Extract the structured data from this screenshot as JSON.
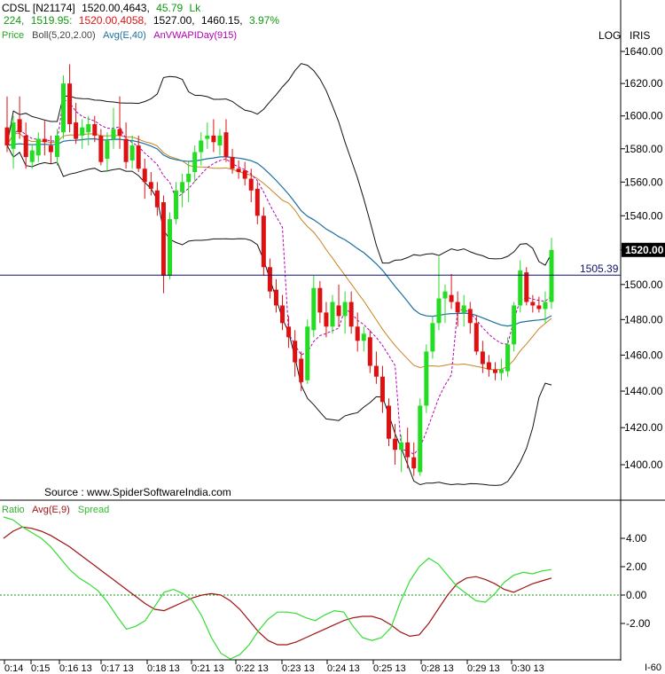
{
  "header": {
    "line1_symbol": "CDSL [N21174]",
    "line1_quote": "1520.00,4643,",
    "line1_change": "45.79",
    "line1_unit": "Lk",
    "line2_a": "224,",
    "line2_b": "1519.95:",
    "line2_c": "1520.00,4058,",
    "line2_d": "1527.00,",
    "line2_e": "1460.15,",
    "line2_f": "3.97%"
  },
  "legend": {
    "price": "Price",
    "boll": "Boll(5,20,2.00)",
    "avg": "Avg(E,40)",
    "vwap": "AnVWAPIDay(915)"
  },
  "top_right": {
    "log": "LOG",
    "iris": "IRIS"
  },
  "source": "Source : www.SpiderSoftwareIndia.com",
  "hline_label": "1505.39",
  "price_badge": "1520.00",
  "lower_legend": {
    "ratio": "Ratio",
    "avg": "Avg(E,9)",
    "spread": "Spread"
  },
  "corner_label": "I-60",
  "colors": {
    "up": "#22dd22",
    "down": "#dd1111",
    "boll": "#111111",
    "ema": "#1a6fa0",
    "vwap": "#b400b4",
    "mid": "#c8821e",
    "ratio": "#a01414",
    "spread": "#33dd33",
    "hline": "#101070",
    "zero": "#119911"
  },
  "chart_data": [
    {
      "type": "candlestick",
      "title": "CDSL [N21174]",
      "yscale": "log",
      "ylim": [
        1380,
        1650
      ],
      "y_ticks": [
        1400,
        1420,
        1440,
        1460,
        1480,
        1500,
        1520,
        1540,
        1560,
        1580,
        1600,
        1620,
        1640
      ],
      "x_ticks": [
        "0:14",
        "0:15",
        "0:16 13",
        "0:17 13",
        "0:18 13",
        "0:21 13",
        "0:22 13",
        "0:23 13",
        "0:24 13",
        "0:25 13",
        "0:28 13",
        "0:29 13",
        "0:30 13"
      ],
      "horizontal_line": 1505.39,
      "candles": [
        [
          1593,
          1612,
          1578,
          1582
        ],
        [
          1580,
          1600,
          1568,
          1596
        ],
        [
          1598,
          1612,
          1586,
          1590
        ],
        [
          1588,
          1596,
          1568,
          1575
        ],
        [
          1572,
          1583,
          1568,
          1579
        ],
        [
          1576,
          1590,
          1572,
          1586
        ],
        [
          1586,
          1597,
          1576,
          1584
        ],
        [
          1582,
          1588,
          1571,
          1578
        ],
        [
          1575,
          1592,
          1570,
          1588
        ],
        [
          1590,
          1625,
          1586,
          1620
        ],
        [
          1620,
          1632,
          1590,
          1595
        ],
        [
          1596,
          1608,
          1583,
          1586
        ],
        [
          1588,
          1598,
          1580,
          1593
        ],
        [
          1590,
          1600,
          1582,
          1595
        ],
        [
          1595,
          1600,
          1584,
          1588
        ],
        [
          1588,
          1592,
          1570,
          1572
        ],
        [
          1574,
          1590,
          1566,
          1585
        ],
        [
          1586,
          1605,
          1580,
          1592
        ],
        [
          1592,
          1612,
          1580,
          1588
        ],
        [
          1586,
          1596,
          1568,
          1572
        ],
        [
          1573,
          1588,
          1568,
          1582
        ],
        [
          1582,
          1588,
          1566,
          1568
        ],
        [
          1568,
          1574,
          1550,
          1560
        ],
        [
          1560,
          1566,
          1552,
          1556
        ],
        [
          1555,
          1560,
          1540,
          1545
        ],
        [
          1548,
          1552,
          1495,
          1505
        ],
        [
          1505,
          1542,
          1503,
          1538
        ],
        [
          1538,
          1560,
          1535,
          1555
        ],
        [
          1554,
          1565,
          1545,
          1560
        ],
        [
          1560,
          1572,
          1548,
          1565
        ],
        [
          1566,
          1582,
          1560,
          1578
        ],
        [
          1578,
          1590,
          1570,
          1585
        ],
        [
          1586,
          1596,
          1580,
          1588
        ],
        [
          1588,
          1598,
          1578,
          1584
        ],
        [
          1582,
          1592,
          1576,
          1588
        ],
        [
          1590,
          1598,
          1572,
          1575
        ],
        [
          1575,
          1580,
          1565,
          1568
        ],
        [
          1568,
          1573,
          1562,
          1566
        ],
        [
          1567,
          1572,
          1558,
          1562
        ],
        [
          1562,
          1568,
          1548,
          1555
        ],
        [
          1556,
          1560,
          1535,
          1540
        ],
        [
          1540,
          1545,
          1505,
          1510
        ],
        [
          1510,
          1515,
          1492,
          1496
        ],
        [
          1497,
          1503,
          1484,
          1488
        ],
        [
          1488,
          1494,
          1474,
          1478
        ],
        [
          1476,
          1482,
          1464,
          1470
        ],
        [
          1468,
          1474,
          1448,
          1456
        ],
        [
          1458,
          1462,
          1440,
          1445
        ],
        [
          1446,
          1480,
          1444,
          1476
        ],
        [
          1474,
          1505,
          1470,
          1498
        ],
        [
          1498,
          1502,
          1478,
          1484
        ],
        [
          1484,
          1490,
          1470,
          1476
        ],
        [
          1476,
          1494,
          1472,
          1490
        ],
        [
          1488,
          1500,
          1476,
          1482
        ],
        [
          1482,
          1496,
          1472,
          1490
        ],
        [
          1490,
          1496,
          1472,
          1476
        ],
        [
          1476,
          1484,
          1462,
          1468
        ],
        [
          1468,
          1476,
          1462,
          1472
        ],
        [
          1470,
          1474,
          1450,
          1454
        ],
        [
          1454,
          1462,
          1444,
          1448
        ],
        [
          1448,
          1454,
          1428,
          1434
        ],
        [
          1432,
          1436,
          1410,
          1414
        ],
        [
          1414,
          1422,
          1400,
          1408
        ],
        [
          1408,
          1416,
          1396,
          1412
        ],
        [
          1412,
          1420,
          1398,
          1404
        ],
        [
          1404,
          1412,
          1394,
          1398
        ],
        [
          1396,
          1436,
          1394,
          1432
        ],
        [
          1432,
          1466,
          1428,
          1462
        ],
        [
          1462,
          1482,
          1458,
          1478
        ],
        [
          1478,
          1516,
          1474,
          1492
        ],
        [
          1492,
          1500,
          1478,
          1496
        ],
        [
          1494,
          1506,
          1486,
          1490
        ],
        [
          1490,
          1496,
          1476,
          1484
        ],
        [
          1484,
          1494,
          1476,
          1488
        ],
        [
          1486,
          1490,
          1472,
          1478
        ],
        [
          1478,
          1482,
          1460,
          1462
        ],
        [
          1462,
          1468,
          1450,
          1455
        ],
        [
          1456,
          1460,
          1448,
          1452
        ],
        [
          1452,
          1456,
          1446,
          1450
        ],
        [
          1450,
          1458,
          1446,
          1452
        ],
        [
          1451,
          1470,
          1448,
          1466
        ],
        [
          1466,
          1490,
          1462,
          1488
        ],
        [
          1488,
          1514,
          1484,
          1508
        ],
        [
          1507,
          1510,
          1488,
          1490
        ],
        [
          1490,
          1494,
          1484,
          1488
        ],
        [
          1488,
          1493,
          1484,
          1486
        ],
        [
          1486,
          1496,
          1478,
          1490
        ],
        [
          1490,
          1527,
          1486,
          1520
        ]
      ]
    },
    {
      "type": "line",
      "title": "Ratio  Avg(E,9)  Spread",
      "ylim": [
        -4.4,
        5.6
      ],
      "y_ticks": [
        -2,
        0,
        2,
        4
      ],
      "series": [
        {
          "name": "Avg(E,9)",
          "values": [
            4.0,
            4.5,
            4.8,
            4.7,
            4.5,
            4.2,
            3.8,
            3.4,
            2.9,
            2.4,
            1.9,
            1.4,
            0.9,
            0.4,
            -0.1,
            -0.6,
            -1.0,
            -1.1,
            -0.8,
            -0.5,
            -0.2,
            0.0,
            0.1,
            0.0,
            -0.4,
            -1.0,
            -1.8,
            -2.6,
            -3.2,
            -3.5,
            -3.5,
            -3.3,
            -3.0,
            -2.7,
            -2.4,
            -2.1,
            -1.8,
            -1.6,
            -1.5,
            -1.5,
            -1.7,
            -2.1,
            -2.6,
            -2.9,
            -2.8,
            -2.0,
            -1.0,
            0.0,
            0.8,
            1.2,
            1.3,
            1.1,
            0.8,
            0.4,
            0.2,
            0.5,
            0.8,
            1.0,
            1.2
          ]
        },
        {
          "name": "Spread",
          "values": [
            5.5,
            5.3,
            4.8,
            4.4,
            4.0,
            3.4,
            2.6,
            1.8,
            1.2,
            0.8,
            0.3,
            -0.5,
            -1.5,
            -2.4,
            -2.2,
            -1.8,
            -0.8,
            0.2,
            0.4,
            0.1,
            -0.4,
            -1.5,
            -3.0,
            -4.1,
            -4.5,
            -4.2,
            -3.5,
            -2.5,
            -1.7,
            -1.2,
            -1.2,
            -1.3,
            -1.6,
            -1.8,
            -1.4,
            -1.1,
            -1.2,
            -2.2,
            -3.0,
            -3.2,
            -3.0,
            -2.3,
            -0.5,
            1.0,
            2.0,
            2.6,
            2.2,
            1.4,
            0.6,
            0.1,
            -0.4,
            -0.5,
            0.1,
            0.9,
            1.4,
            1.6,
            1.5,
            1.7,
            1.8
          ]
        }
      ]
    }
  ]
}
